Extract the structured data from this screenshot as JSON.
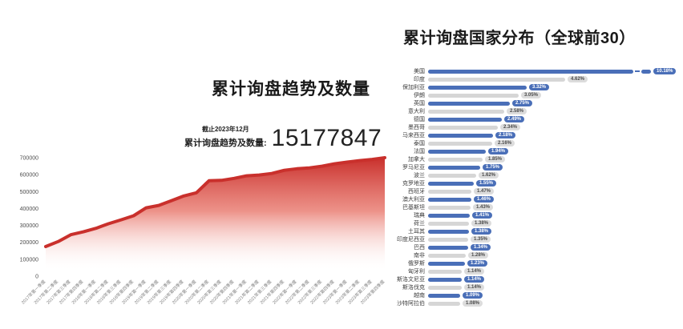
{
  "stats": {
    "note": "截止2023年12月",
    "label": "累计询盘趋势及数量:",
    "value": "15177847"
  },
  "colors": {
    "bar_blue": "#4a6fb8",
    "bar_gray": "#d6d6d6",
    "badge_gray_bg": "#dcdcdc",
    "badge_gray_text": "#4a4a4a",
    "area_red": "#c9302c",
    "area_red_light": "#e8766b",
    "title_text": "#1a1a1a",
    "x_axis_text": "#808080",
    "y_axis_text": "#4d4d4d"
  },
  "chart_data": [
    {
      "type": "area",
      "title": "累计询盘趋势及数量",
      "xlabel": "",
      "ylabel": "",
      "ylim": [
        0,
        700000
      ],
      "grid": false,
      "legend": "none",
      "yticks": [
        "0",
        "100000",
        "200000",
        "300000",
        "400000",
        "500000",
        "600000",
        "700000"
      ],
      "x": [
        "2017年第一季度",
        "2017年第二季度",
        "2017年第三季度",
        "2017年第四季度",
        "2018年第一季度",
        "2018年第二季度",
        "2018年第三季度",
        "2018年第四季度",
        "2019年第一季度",
        "2019年第二季度",
        "2019年第三季度",
        "2019年第四季度",
        "2020年第一季度",
        "2020年第二季度",
        "2020年第三季度",
        "2020年第四季度",
        "2021年第一季度",
        "2021年第二季度",
        "2021年第三季度",
        "2021年第四季度",
        "2022年第一季度",
        "2022年第二季度",
        "2022年第三季度",
        "2022年第四季度",
        "2023年第一季度",
        "2023年第二季度",
        "2023年第三季度",
        "2023年第四季度"
      ],
      "values": [
        175000,
        205000,
        245000,
        262000,
        283000,
        310000,
        333000,
        357000,
        404000,
        418000,
        446000,
        474000,
        493000,
        564000,
        566000,
        578000,
        593000,
        598000,
        607000,
        626000,
        635000,
        640000,
        650000,
        664000,
        674000,
        683000,
        690000,
        700000
      ]
    },
    {
      "type": "bar",
      "orientation": "horizontal",
      "title": "累计询盘国家分布（全球前30）",
      "unit": "%",
      "legend": "none",
      "grid": false,
      "break_index": 0,
      "alternating_styles": [
        "blue",
        "gray"
      ],
      "categories": [
        "美国",
        "印度",
        "保加利亚",
        "伊朗",
        "英国",
        "意大利",
        "德国",
        "墨西哥",
        "马来西亚",
        "泰国",
        "法国",
        "加拿大",
        "罗马尼亚",
        "波兰",
        "克罗地亚",
        "西班牙",
        "澳大利亚",
        "巴基斯坦",
        "瑞典",
        "荷兰",
        "土耳其",
        "印度尼西亚",
        "巴西",
        "南非",
        "俄罗斯",
        "匈牙利",
        "斯洛文尼亚",
        "斯洛伐克",
        "越南",
        "沙特阿拉伯"
      ],
      "values": [
        10.18,
        4.62,
        3.32,
        3.05,
        2.75,
        2.58,
        2.49,
        2.34,
        2.18,
        2.16,
        1.94,
        1.85,
        1.75,
        1.62,
        1.55,
        1.47,
        1.46,
        1.43,
        1.41,
        1.38,
        1.38,
        1.35,
        1.34,
        1.28,
        1.23,
        1.14,
        1.14,
        1.14,
        1.09,
        1.08
      ]
    }
  ]
}
